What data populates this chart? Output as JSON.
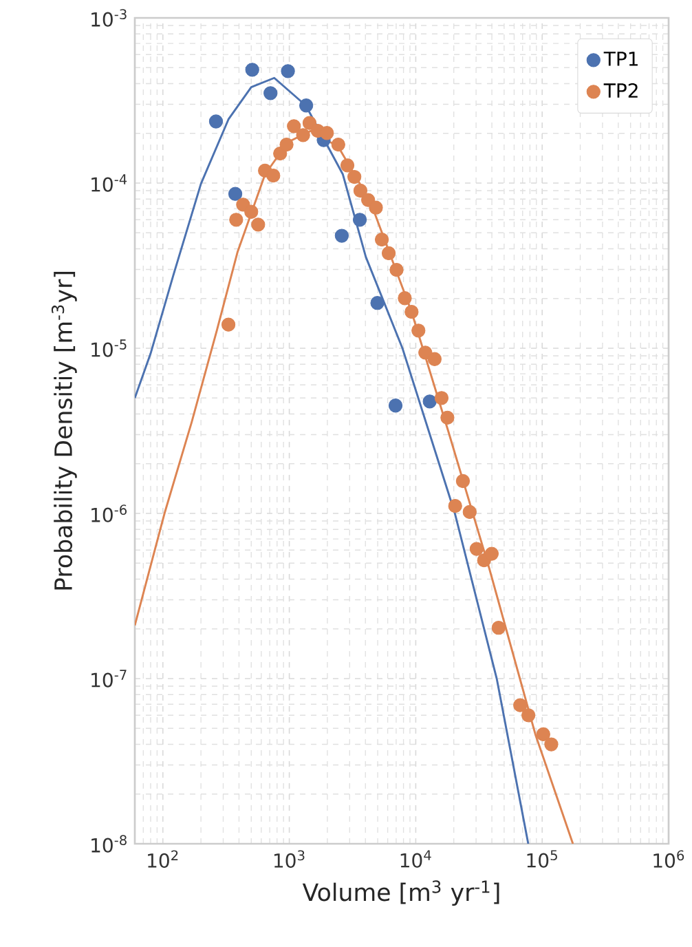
{
  "chart_data": {
    "type": "scatter",
    "xlabel": "Volume [m$^{3}$ yr$^{-1}$]",
    "ylabel": "Probability Densitiy [m$^{-3}$yr]",
    "log": "xy",
    "grid": true,
    "legend": "top right",
    "marker": "circle",
    "xlim": [
      60,
      1000000
    ],
    "ylim": [
      1e-08,
      0.001
    ],
    "xticks": [
      {
        "value": 100,
        "label": "10$^{2}$"
      },
      {
        "value": 1000,
        "label": "10$^{3}$"
      },
      {
        "value": 10000,
        "label": "10$^{4}$"
      },
      {
        "value": 100000,
        "label": "10$^{5}$"
      },
      {
        "value": 1000000,
        "label": "10$^{6}$"
      }
    ],
    "yticks": [
      {
        "value": 1e-08,
        "label": "10$^{-8}$"
      },
      {
        "value": 1e-07,
        "label": "10$^{-7}$"
      },
      {
        "value": 1e-06,
        "label": "10$^{-6}$"
      },
      {
        "value": 1e-05,
        "label": "10$^{-5}$"
      },
      {
        "value": 0.0001,
        "label": "10$^{-4}$"
      },
      {
        "value": 0.001,
        "label": "10$^{-3}$"
      }
    ],
    "series": [
      {
        "name": "TP1",
        "color": "#4c72b0",
        "x": [
          263,
          374,
          509,
          710,
          975,
          1360,
          1870,
          2600,
          3610,
          4970,
          6920,
          12900
        ],
        "values": [
          0.000236,
          8.6e-05,
          0.000485,
          0.00035,
          0.000476,
          0.000295,
          0.000182,
          4.8e-05,
          6e-05,
          1.88e-05,
          4.5e-06,
          4.76e-06
        ]
      },
      {
        "name": "TP2",
        "color": "#dd8452",
        "x": [
          330,
          380,
          431,
          500,
          567,
          642,
          747,
          846,
          951,
          1087,
          1285,
          1445,
          1680,
          1983,
          2440,
          2880,
          3270,
          3650,
          4200,
          4840,
          5390,
          6110,
          7050,
          8190,
          9270,
          10500,
          11900,
          14100,
          16000,
          17800,
          20500,
          23600,
          26700,
          30300,
          34700,
          39900,
          45200,
          67000,
          77800,
          102000,
          118000
        ],
        "values": [
          1.39e-05,
          6e-05,
          7.4e-05,
          6.7e-05,
          5.6e-05,
          0.000119,
          0.000111,
          0.000151,
          0.000171,
          0.000221,
          0.000195,
          0.000231,
          0.000207,
          0.000201,
          0.000171,
          0.000128,
          0.000109,
          9e-05,
          7.9e-05,
          7.1e-05,
          4.55e-05,
          3.76e-05,
          2.98e-05,
          2.01e-05,
          1.66e-05,
          1.28e-05,
          9.4e-06,
          8.6e-06,
          5e-06,
          3.8e-06,
          1.11e-06,
          1.57e-06,
          1.02e-06,
          6.1e-07,
          5.2e-07,
          5.7e-07,
          2.03e-07,
          6.9e-08,
          6e-08,
          4.6e-08,
          4e-08
        ]
      },
      {
        "type": "line",
        "marker": "none",
        "color": "#4c72b0",
        "x": [
          60,
          80,
          121,
          200,
          330,
          500,
          760,
          1350,
          2650,
          4030,
          7850,
          20400,
          43700,
          77600
        ],
        "values": [
          5e-06,
          9.3e-06,
          2.77e-05,
          9.9e-05,
          0.000243,
          0.000381,
          0.000433,
          0.000295,
          0.000113,
          3.57e-05,
          1e-05,
          1e-06,
          1e-07,
          1e-08
        ]
      },
      {
        "type": "line",
        "marker": "none",
        "color": "#dd8452",
        "x": [
          60,
          103,
          169,
          267,
          389,
          643,
          975,
          1480,
          2440,
          4380,
          9270,
          18100,
          38300,
          88300,
          175000
        ],
        "values": [
          2.1e-07,
          1e-06,
          3.57e-06,
          1.28e-05,
          3.81e-05,
          0.000113,
          0.000177,
          0.000207,
          0.000166,
          7.7e-05,
          1.66e-05,
          3.14e-06,
          4.6e-07,
          4.6e-08,
          1e-08
        ]
      }
    ]
  }
}
